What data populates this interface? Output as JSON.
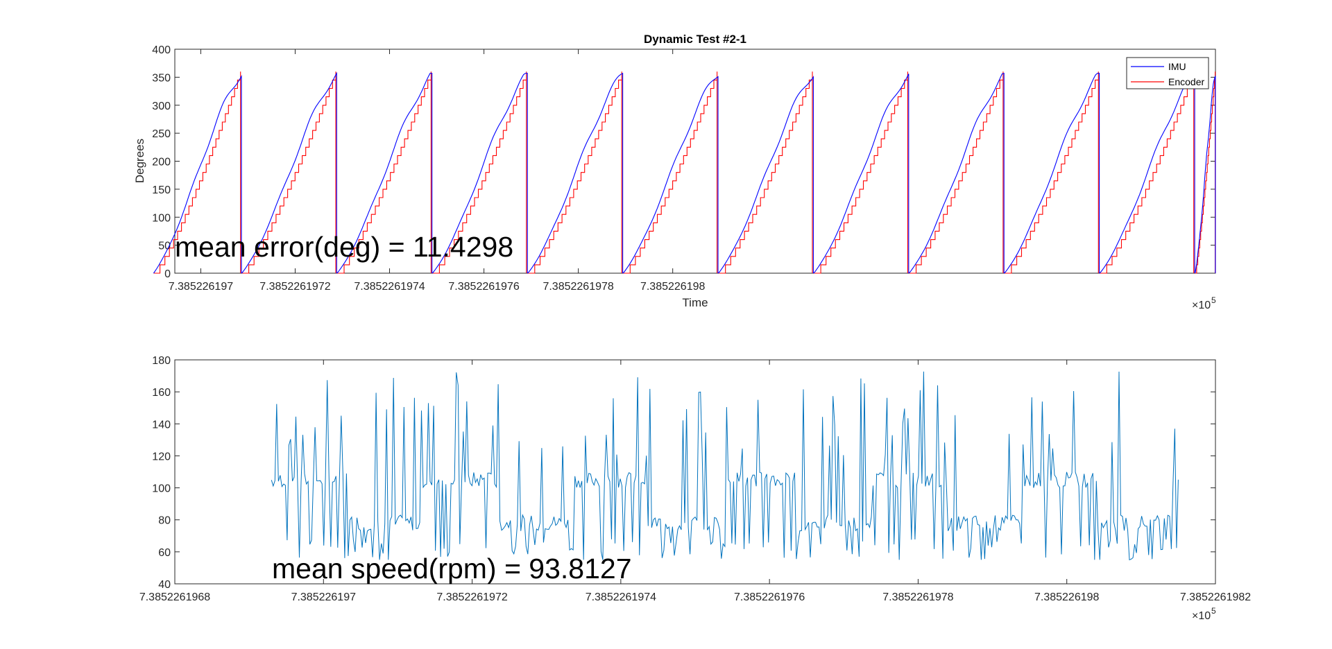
{
  "chart_data": [
    {
      "type": "line",
      "title": "Dynamic Test #2-1",
      "xlabel": "Time",
      "ylabel": "Degrees",
      "x_exponent_label": "×10^5",
      "xlim": [
        7.385226196945,
        7.38522619915
      ],
      "ylim": [
        0,
        400
      ],
      "yticks": [
        0,
        50,
        100,
        150,
        200,
        250,
        300,
        350,
        400
      ],
      "xticks": [
        7.385226197,
        7.3852261972,
        7.3852261974,
        7.3852261976,
        7.3852261978,
        7.385226198
      ],
      "xtick_labels": [
        "7.385226197",
        "7.3852261972",
        "7.3852261974",
        "7.3852261976",
        "7.3852261978",
        "7.385226198"
      ],
      "legend_position": "top-right",
      "series": [
        {
          "name": "IMU",
          "color": "#0000ff",
          "cycle_starts": [
            7.3852261969,
            7.385226197087,
            7.385226197289,
            7.385226197491,
            7.385226197693,
            7.385226197895,
            7.385226198097,
            7.385226198299,
            7.385226198501,
            7.385226198703,
            7.385226198905,
            7.385226199107
          ],
          "cycle_peak": 357
        },
        {
          "name": "Encoder",
          "color": "#ff0000",
          "cycle_starts": [
            7.3852261969,
            7.385226197087,
            7.385226197289,
            7.385226197491,
            7.385226197693,
            7.385226197895,
            7.385226198097,
            7.385226198299,
            7.385226198501,
            7.385226198703,
            7.385226198905,
            7.385226199107
          ],
          "cycle_peak": 360,
          "step_deg": 15
        }
      ],
      "annotation": "mean error(deg) = 11.4298"
    },
    {
      "type": "line",
      "title": "",
      "xlabel": "",
      "ylabel": "",
      "x_exponent_label": "×10^5",
      "xlim": [
        7.3852261968,
        7.3852261982
      ],
      "ylim": [
        40,
        180
      ],
      "yticks": [
        40,
        60,
        80,
        100,
        120,
        140,
        160,
        180
      ],
      "xticks": [
        7.3852261968,
        7.385226197,
        7.3852261972,
        7.3852261974,
        7.3852261976,
        7.3852261978,
        7.385226198,
        7.3852261982
      ],
      "xtick_labels": [
        "7.3852261968",
        "7.385226197",
        "7.3852261972",
        "7.3852261974",
        "7.3852261976",
        "7.3852261978",
        "7.385226198",
        "7.3852261982"
      ],
      "series": [
        {
          "color": "#0072bd",
          "x_range": [
            7.38522619693,
            7.38522619815
          ],
          "period": 2.02e-10,
          "baseline_low": 78,
          "baseline_high": 105,
          "spike_high": 175,
          "spike_low": 55
        }
      ],
      "annotation": "mean speed(rpm) = 93.8127"
    }
  ]
}
